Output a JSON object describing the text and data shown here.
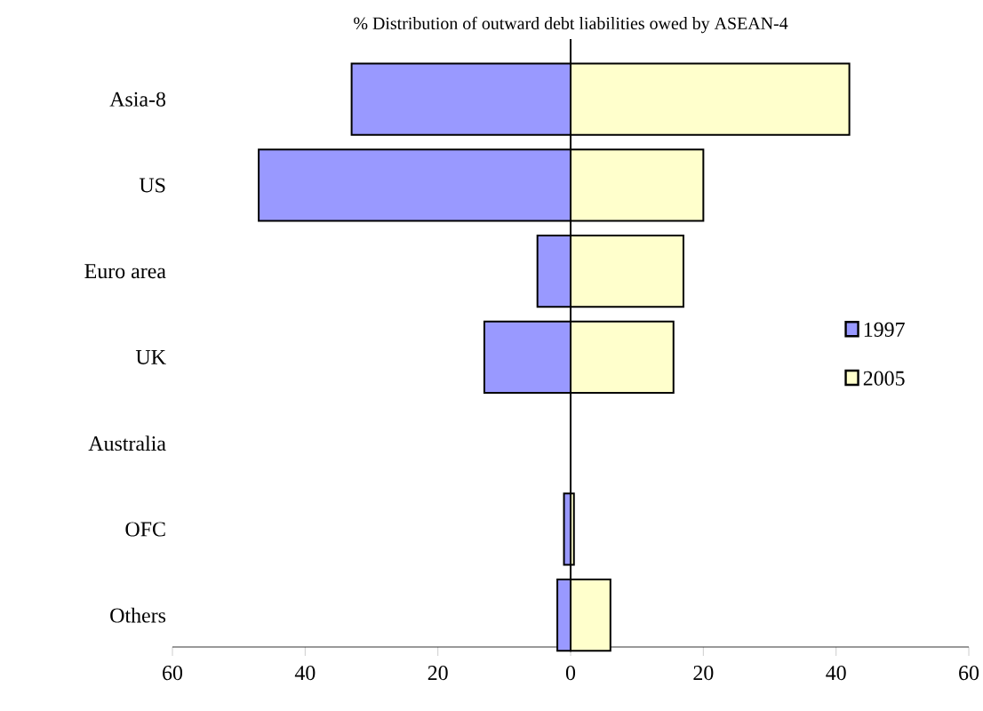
{
  "chart_data": {
    "type": "bar",
    "orientation": "horizontal",
    "title": "% Distribution of outward debt liabilities owed by ASEAN-4",
    "categories": [
      "Asia-8",
      "US",
      "Euro area",
      "UK",
      "Australia",
      "OFC",
      "Others"
    ],
    "series": [
      {
        "name": "1997",
        "color": "#9999ff",
        "values": [
          -33,
          -47,
          -5,
          -13,
          0,
          -1,
          -2
        ]
      },
      {
        "name": "2005",
        "color": "#ffffcc",
        "values": [
          42,
          20,
          17,
          15.5,
          0,
          0.5,
          6
        ]
      }
    ],
    "xlim": [
      -60,
      60
    ],
    "xticks": [
      {
        "value": -60,
        "label": "60"
      },
      {
        "value": -40,
        "label": "40"
      },
      {
        "value": -20,
        "label": "20"
      },
      0,
      20,
      40,
      60
    ],
    "stacked": true,
    "ref_lines": [
      {
        "axis": "x",
        "value": 0,
        "color": "#000000"
      }
    ],
    "legend": "right",
    "grid": false
  }
}
